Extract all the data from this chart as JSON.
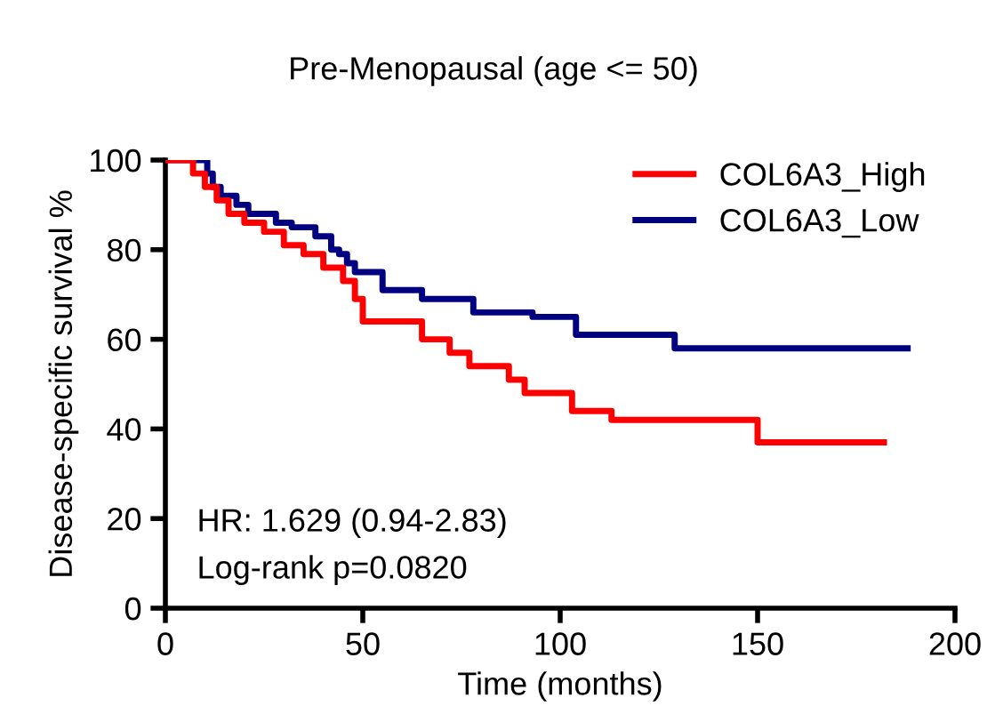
{
  "chart_data": {
    "type": "step",
    "title": "Pre-Menopausal (age <= 50)",
    "xlabel": "Time (months)",
    "ylabel": "Disease-specific survival %",
    "xlim": [
      0,
      200
    ],
    "ylim": [
      0,
      100
    ],
    "xticks": [
      0,
      50,
      100,
      150,
      200
    ],
    "yticks": [
      0,
      20,
      40,
      60,
      80,
      100
    ],
    "grid": false,
    "legend": "top right",
    "line_style": "solid",
    "series": [
      {
        "name": "COL6A3_High",
        "color": "#ff0000",
        "x": [
          0,
          7,
          10,
          13,
          16,
          20,
          25,
          30,
          35,
          40,
          45,
          48,
          50,
          65,
          72,
          77,
          87,
          91,
          103,
          113,
          150,
          182
        ],
        "values": [
          100,
          97,
          94,
          91,
          88,
          86,
          84,
          81,
          79,
          76,
          73,
          69,
          64,
          60,
          57,
          54,
          51,
          48,
          44,
          42,
          37,
          37
        ]
      },
      {
        "name": "COL6A3_Low",
        "color": "#000080",
        "x": [
          0,
          10.6,
          12,
          14,
          18,
          21,
          28,
          32,
          38,
          42,
          44,
          46,
          48,
          55,
          65,
          78,
          93,
          104,
          129,
          188
        ],
        "values": [
          100,
          97,
          94,
          92,
          90,
          88,
          86,
          85,
          83,
          80,
          79,
          77,
          75,
          71,
          69,
          66,
          65,
          61,
          58,
          58
        ]
      }
    ],
    "annotations": [
      "HR: 1.629 (0.94-2.83)",
      "Log-rank p=0.0820"
    ]
  }
}
